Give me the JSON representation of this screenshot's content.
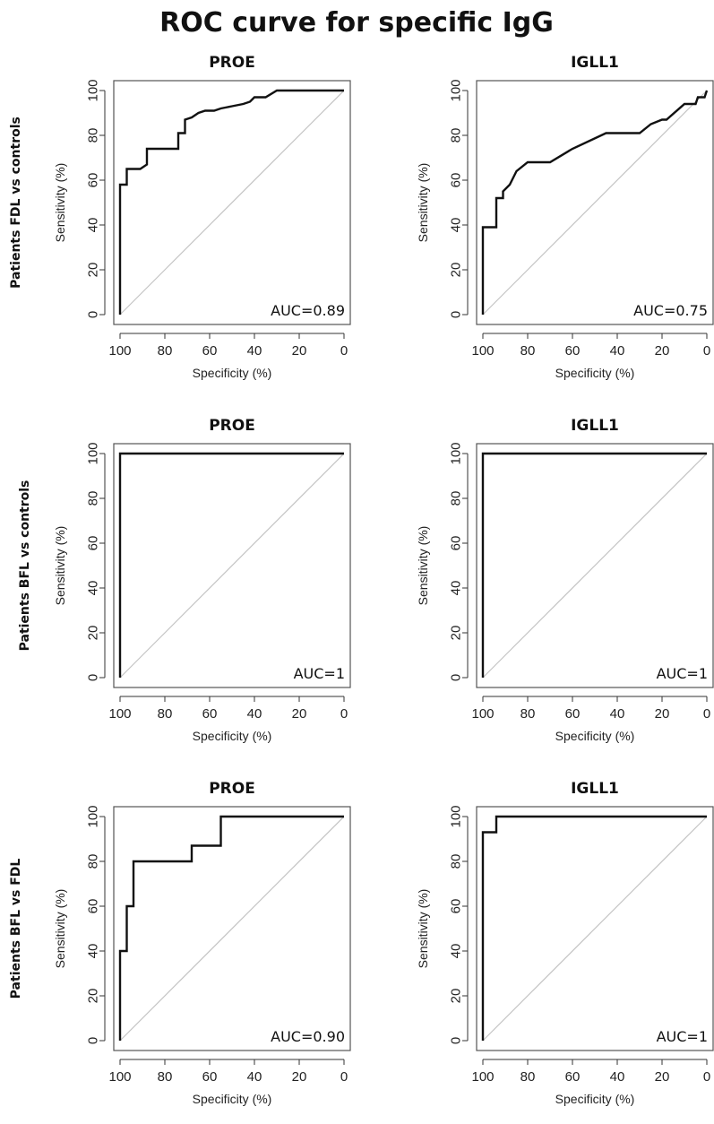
{
  "title": "ROC curve for specific IgG",
  "row_labels": [
    "Patients FDL vs controls",
    "Patients BFL vs controls",
    "Patients BFL vs FDL"
  ],
  "chart_data": [
    {
      "type": "line",
      "title": "PROE",
      "row": "Patients FDL vs controls",
      "xlabel": "Specificity (%)",
      "ylabel": "Sensitivity (%)",
      "xlim": [
        100,
        0
      ],
      "ylim": [
        0,
        100
      ],
      "xticks": [
        "100",
        "80",
        "60",
        "40",
        "20",
        "0"
      ],
      "yticks": [
        "0",
        "20",
        "40",
        "60",
        "80",
        "100"
      ],
      "reference_line": "diagonal",
      "auc_label": "AUC=0.89",
      "points": [
        [
          100,
          0
        ],
        [
          100,
          58
        ],
        [
          97,
          58
        ],
        [
          97,
          65
        ],
        [
          91,
          65
        ],
        [
          88,
          67
        ],
        [
          88,
          74
        ],
        [
          74,
          74
        ],
        [
          74,
          81
        ],
        [
          71,
          81
        ],
        [
          71,
          87
        ],
        [
          68,
          88
        ],
        [
          65,
          90
        ],
        [
          62,
          91
        ],
        [
          58,
          91
        ],
        [
          55,
          92
        ],
        [
          50,
          93
        ],
        [
          45,
          94
        ],
        [
          42,
          95
        ],
        [
          40,
          97
        ],
        [
          35,
          97
        ],
        [
          30,
          100
        ],
        [
          0,
          100
        ]
      ]
    },
    {
      "type": "line",
      "title": "IGLL1",
      "row": "Patients FDL vs controls",
      "xlabel": "Specificity (%)",
      "ylabel": "Sensitivity (%)",
      "xlim": [
        100,
        0
      ],
      "ylim": [
        0,
        100
      ],
      "xticks": [
        "100",
        "80",
        "60",
        "40",
        "20",
        "0"
      ],
      "yticks": [
        "0",
        "20",
        "40",
        "60",
        "80",
        "100"
      ],
      "reference_line": "diagonal",
      "auc_label": "AUC=0.75",
      "points": [
        [
          100,
          0
        ],
        [
          100,
          39
        ],
        [
          94,
          39
        ],
        [
          94,
          52
        ],
        [
          91,
          52
        ],
        [
          91,
          55
        ],
        [
          88,
          58
        ],
        [
          85,
          64
        ],
        [
          80,
          68
        ],
        [
          70,
          68
        ],
        [
          60,
          74
        ],
        [
          45,
          81
        ],
        [
          30,
          81
        ],
        [
          25,
          85
        ],
        [
          20,
          87
        ],
        [
          18,
          87
        ],
        [
          10,
          94
        ],
        [
          5,
          94
        ],
        [
          4,
          97
        ],
        [
          1,
          97
        ],
        [
          0,
          100
        ]
      ]
    },
    {
      "type": "line",
      "title": "PROE",
      "row": "Patients BFL vs controls",
      "xlabel": "Specificity (%)",
      "ylabel": "Sensitivity (%)",
      "xlim": [
        100,
        0
      ],
      "ylim": [
        0,
        100
      ],
      "xticks": [
        "100",
        "80",
        "60",
        "40",
        "20",
        "0"
      ],
      "yticks": [
        "0",
        "20",
        "40",
        "60",
        "80",
        "100"
      ],
      "reference_line": "diagonal",
      "auc_label": "AUC=1",
      "points": [
        [
          100,
          0
        ],
        [
          100,
          100
        ],
        [
          0,
          100
        ]
      ]
    },
    {
      "type": "line",
      "title": "IGLL1",
      "row": "Patients BFL vs controls",
      "xlabel": "Specificity (%)",
      "ylabel": "Sensitivity (%)",
      "xlim": [
        100,
        0
      ],
      "ylim": [
        0,
        100
      ],
      "xticks": [
        "100",
        "80",
        "60",
        "40",
        "20",
        "0"
      ],
      "yticks": [
        "0",
        "20",
        "40",
        "60",
        "80",
        "100"
      ],
      "reference_line": "diagonal",
      "auc_label": "AUC=1",
      "points": [
        [
          100,
          0
        ],
        [
          100,
          100
        ],
        [
          0,
          100
        ]
      ]
    },
    {
      "type": "line",
      "title": "PROE",
      "row": "Patients BFL vs FDL",
      "xlabel": "Specificity (%)",
      "ylabel": "Sensitivity (%)",
      "xlim": [
        100,
        0
      ],
      "ylim": [
        0,
        100
      ],
      "xticks": [
        "100",
        "80",
        "60",
        "40",
        "20",
        "0"
      ],
      "yticks": [
        "0",
        "20",
        "40",
        "60",
        "80",
        "100"
      ],
      "reference_line": "diagonal",
      "auc_label": "AUC=0.90",
      "points": [
        [
          100,
          0
        ],
        [
          100,
          40
        ],
        [
          97,
          40
        ],
        [
          97,
          60
        ],
        [
          94,
          60
        ],
        [
          94,
          80
        ],
        [
          68,
          80
        ],
        [
          68,
          87
        ],
        [
          55,
          87
        ],
        [
          55,
          100
        ],
        [
          0,
          100
        ]
      ]
    },
    {
      "type": "line",
      "title": "IGLL1",
      "row": "Patients BFL vs FDL",
      "xlabel": "Specificity (%)",
      "ylabel": "Sensitivity (%)",
      "xlim": [
        100,
        0
      ],
      "ylim": [
        0,
        100
      ],
      "xticks": [
        "100",
        "80",
        "60",
        "40",
        "20",
        "0"
      ],
      "yticks": [
        "0",
        "20",
        "40",
        "60",
        "80",
        "100"
      ],
      "reference_line": "diagonal",
      "auc_label": "AUC=1",
      "points": [
        [
          100,
          0
        ],
        [
          100,
          93
        ],
        [
          94,
          93
        ],
        [
          94,
          100
        ],
        [
          0,
          100
        ]
      ]
    }
  ]
}
